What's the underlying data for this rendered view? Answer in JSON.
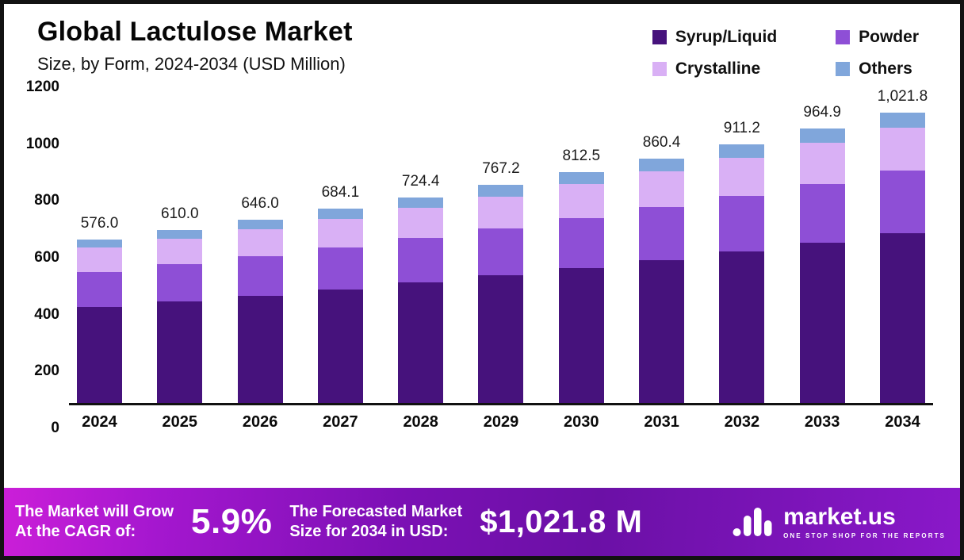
{
  "header": {
    "title": "Global Lactulose Market",
    "subtitle": "Size, by Form, 2024-2034 (USD Million)"
  },
  "chart_data": {
    "type": "bar",
    "stacked": true,
    "title": "Global Lactulose Market Size, by Form, 2024-2034 (USD Million)",
    "xlabel": "",
    "ylabel": "USD Million",
    "ylim": [
      0,
      1200
    ],
    "yticks": [
      0,
      200,
      400,
      600,
      800,
      1000,
      1200
    ],
    "grid": false,
    "legend_position": "top-right",
    "categories": [
      "2024",
      "2025",
      "2026",
      "2027",
      "2028",
      "2029",
      "2030",
      "2031",
      "2032",
      "2033",
      "2034"
    ],
    "series": [
      {
        "name": "Syrup/Liquid",
        "color": "#46127c",
        "values": [
          337.0,
          356.9,
          377.9,
          400.2,
          423.8,
          448.8,
          475.3,
          503.3,
          533.1,
          564.5,
          597.8
        ]
      },
      {
        "name": "Powder",
        "color": "#8e4fd6",
        "values": [
          123.8,
          131.2,
          138.9,
          147.1,
          155.7,
          165.0,
          174.7,
          185.0,
          195.9,
          207.5,
          219.7
        ]
      },
      {
        "name": "Crystalline",
        "color": "#d9b0f5",
        "values": [
          85.2,
          90.3,
          95.6,
          101.2,
          107.2,
          113.5,
          120.3,
          127.3,
          134.9,
          142.8,
          151.2
        ]
      },
      {
        "name": "Others",
        "color": "#80a6db",
        "values": [
          30.0,
          31.6,
          33.6,
          35.6,
          37.7,
          39.9,
          42.2,
          44.8,
          47.3,
          50.1,
          53.1
        ]
      }
    ],
    "totals": [
      576.0,
      610.0,
      646.0,
      684.1,
      724.4,
      767.2,
      812.5,
      860.4,
      911.2,
      964.9,
      1021.8
    ],
    "totals_display": [
      "576.0",
      "610.0",
      "646.0",
      "684.1",
      "724.4",
      "767.2",
      "812.5",
      "860.4",
      "911.2",
      "964.9",
      "1,021.8"
    ]
  },
  "footer": {
    "growth_label": "The Market will Grow\nAt the CAGR of:",
    "cagr_value": "5.9%",
    "forecast_label": "The Forecasted Market\nSize for 2034 in USD:",
    "forecast_value": "$1,021.8 M",
    "brand": "market.us",
    "brand_tagline": "ONE STOP SHOP FOR THE REPORTS"
  }
}
